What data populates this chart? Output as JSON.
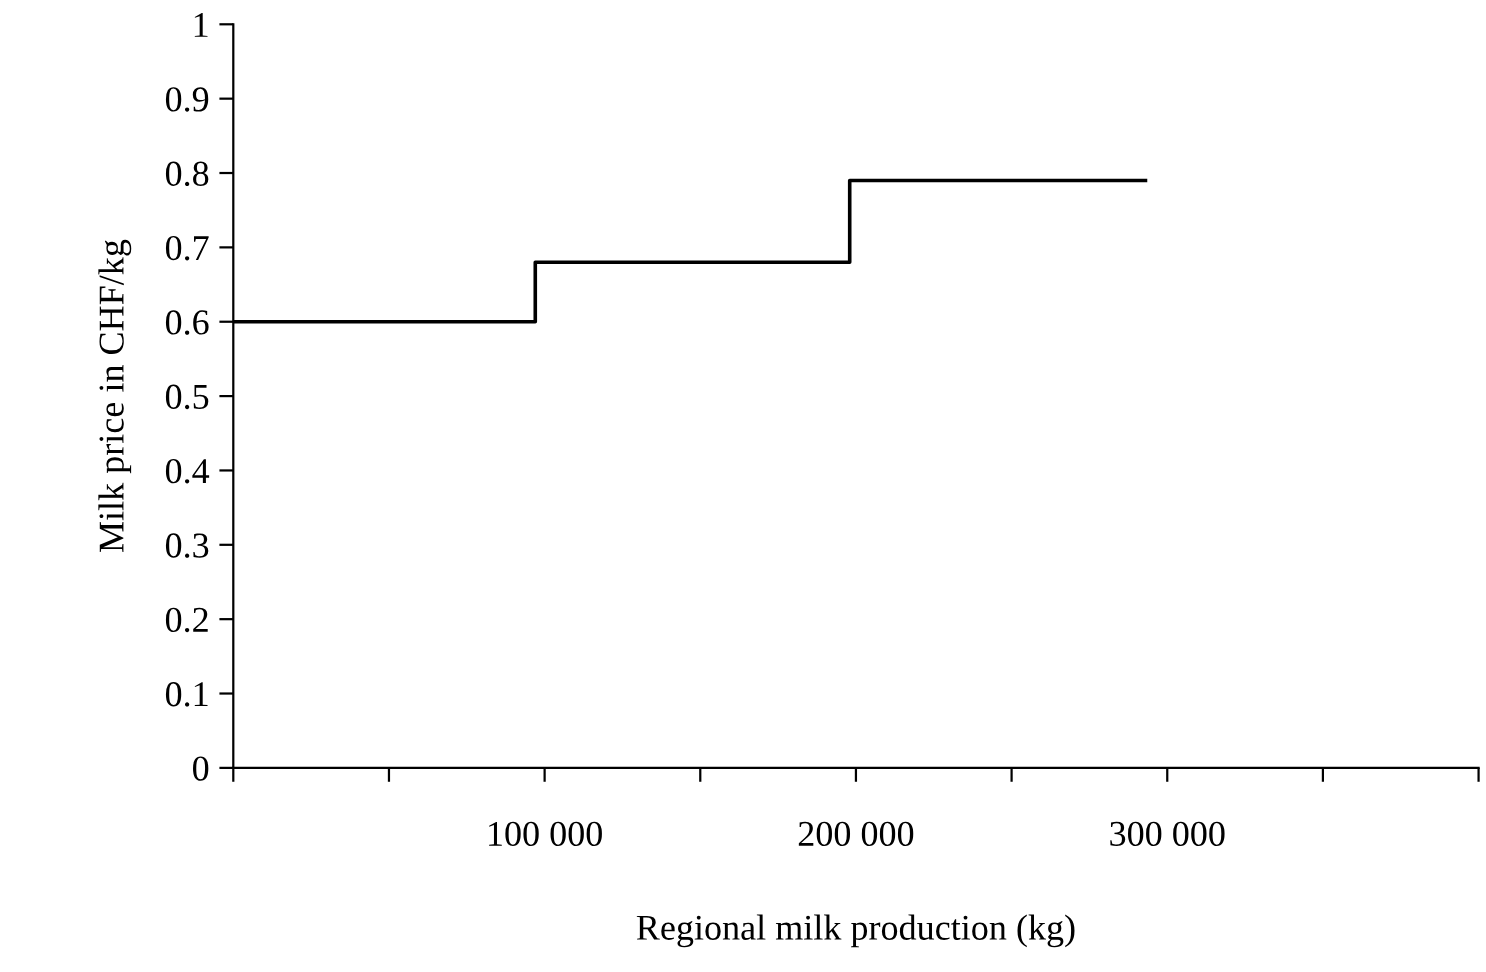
{
  "chart_data": {
    "type": "step",
    "xlabel": "Regional milk production (kg)",
    "ylabel": "Milk price in CHF/kg",
    "x": [
      0,
      97000,
      198000,
      293000
    ],
    "series": [
      {
        "color": "#000000",
        "values": [
          0.6,
          0.68,
          0.79,
          0.79
        ]
      }
    ],
    "xlim": [
      0,
      400000
    ],
    "xticks": [
      {
        "value": 0,
        "label": null
      },
      {
        "value": 50000,
        "label": null
      },
      {
        "value": 100000,
        "label": "100 000"
      },
      {
        "value": 150000,
        "label": null
      },
      {
        "value": 200000,
        "label": "200 000"
      },
      {
        "value": 250000,
        "label": null
      },
      {
        "value": 300000,
        "label": "300 000"
      },
      {
        "value": 350000,
        "label": null
      },
      {
        "value": 400000,
        "label": null
      }
    ],
    "ylim": [
      0,
      1
    ],
    "yticks": [
      0,
      0.1,
      0.2,
      0.3,
      0.4,
      0.5,
      0.6,
      0.7,
      0.8,
      0.9,
      1
    ],
    "grid": false,
    "marker": "none",
    "line_style": "solid"
  }
}
